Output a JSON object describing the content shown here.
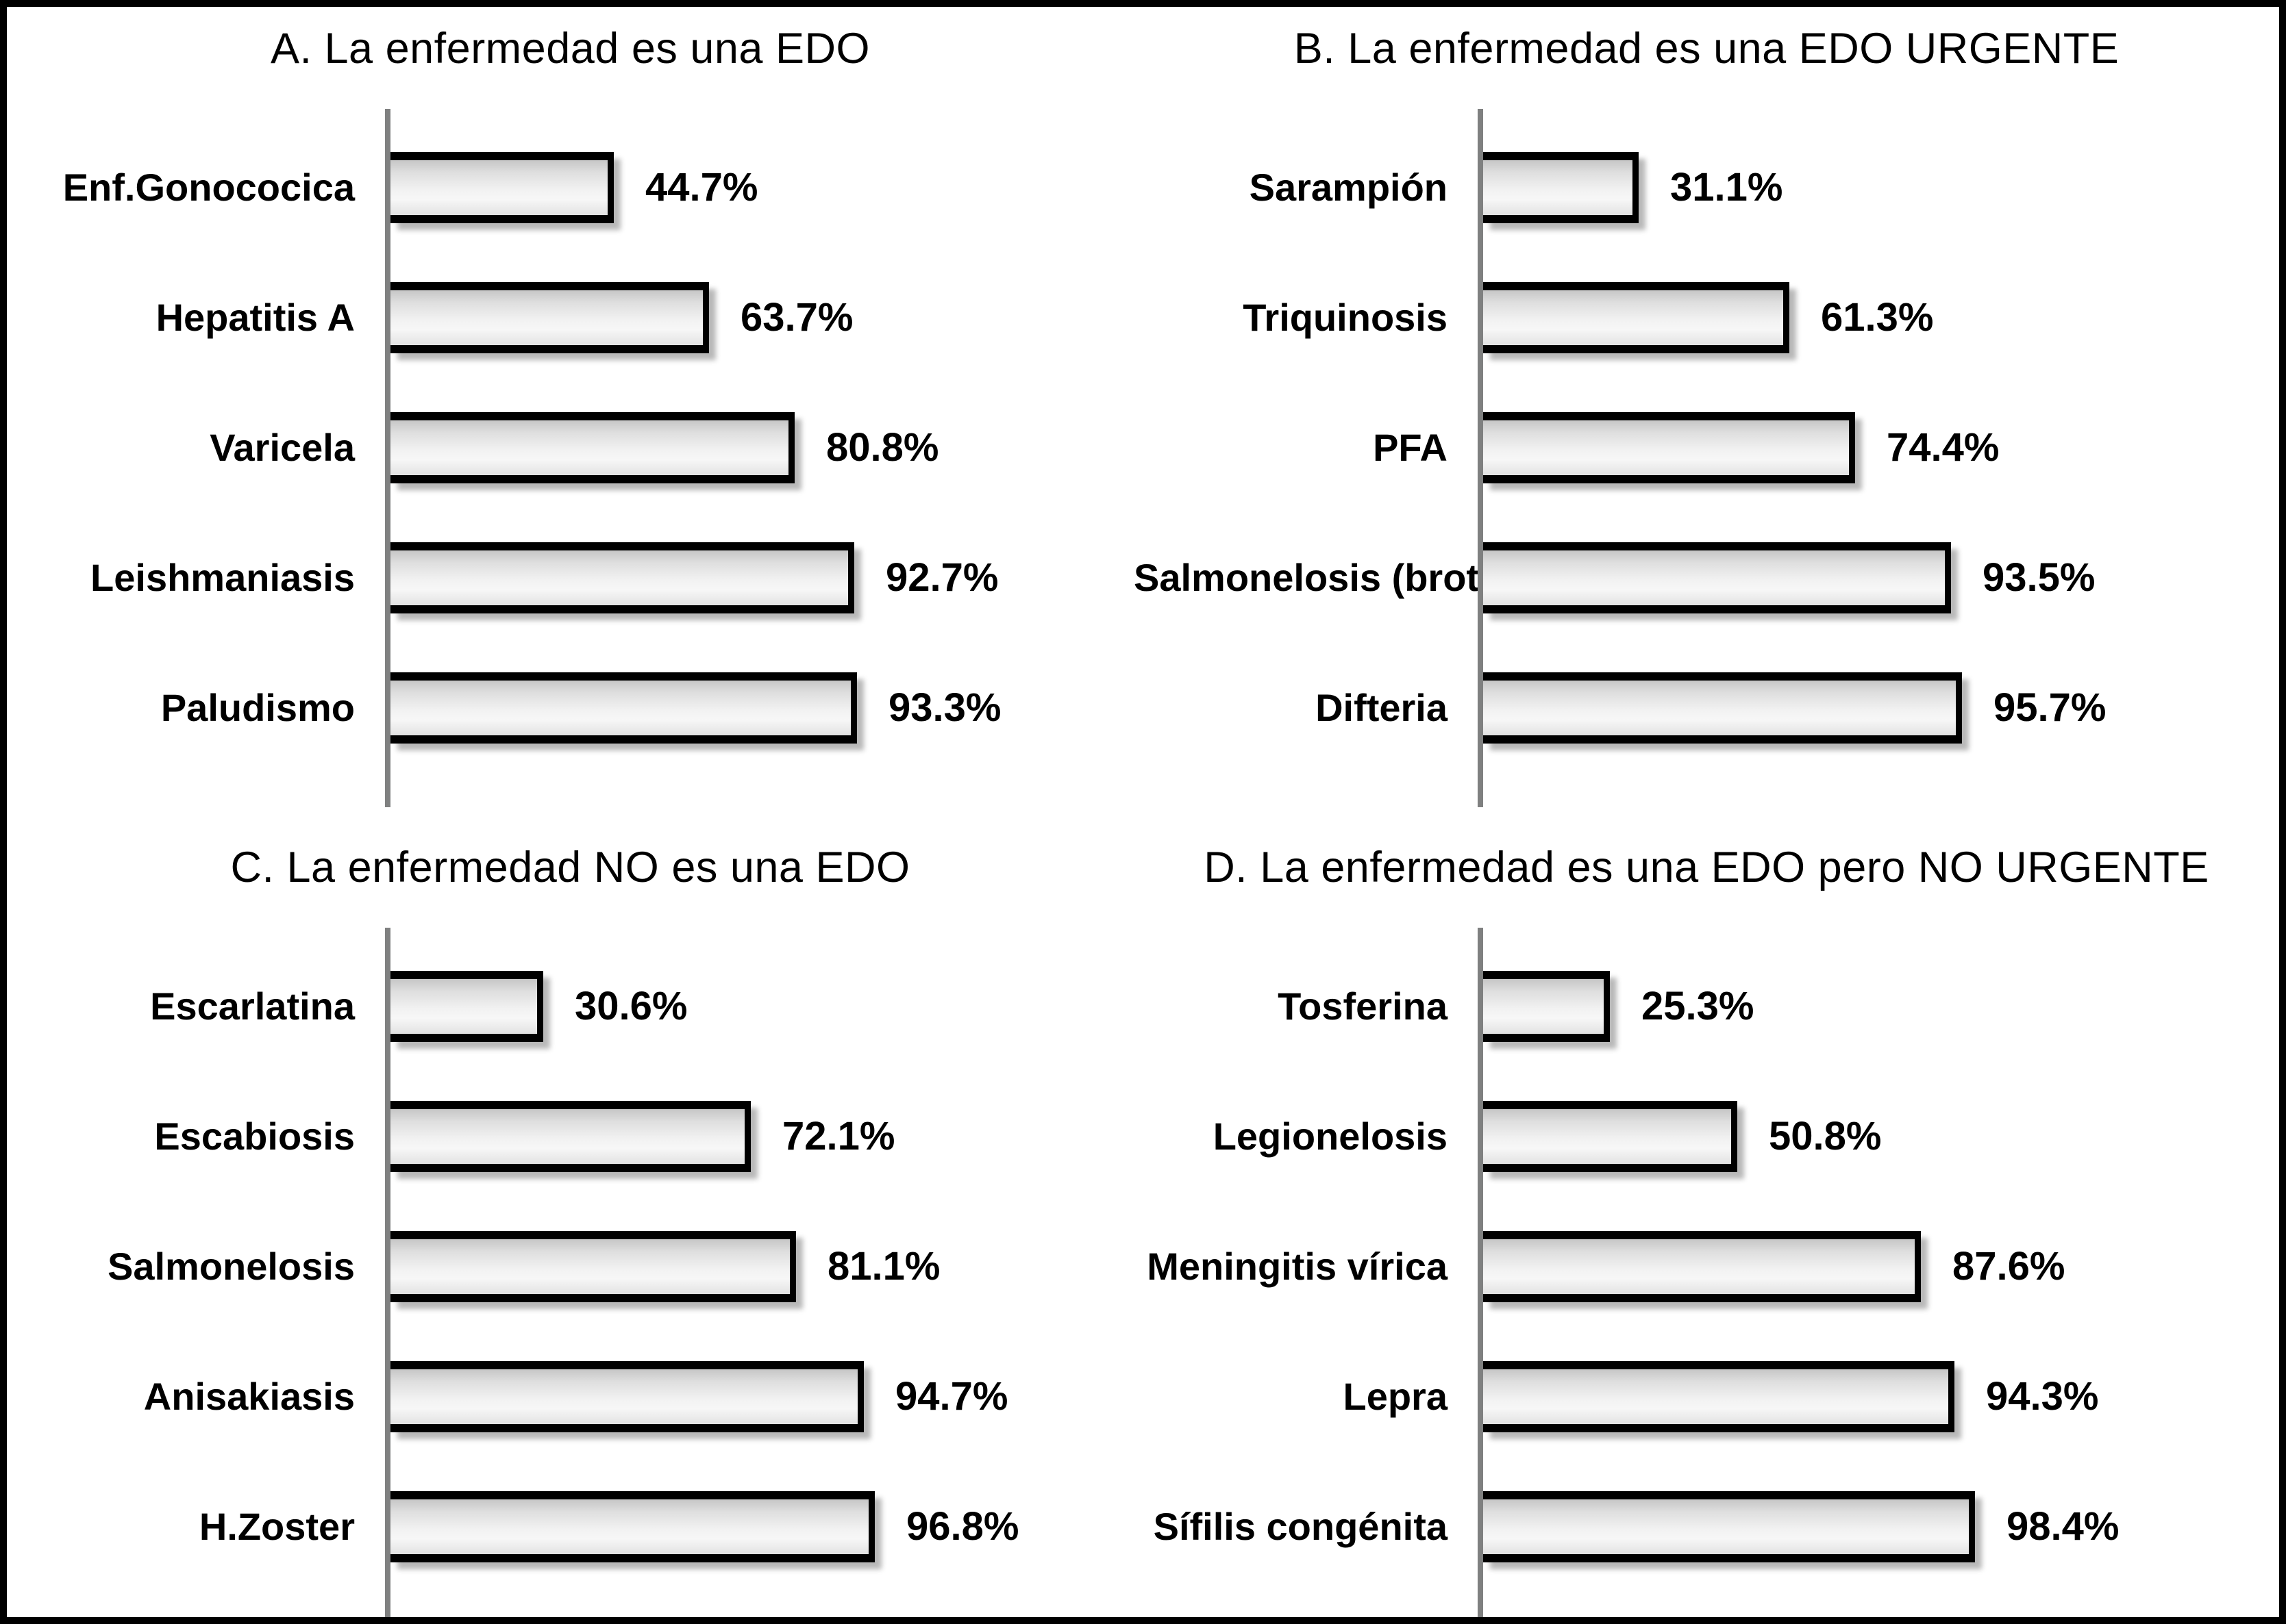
{
  "figure": {
    "background": "#ffffff",
    "outer_border_color": "#000000",
    "axis_color": "#7f8080",
    "bar_border_color": "#000000",
    "bar_fill_light": "#f2f2f2",
    "bar_fill_dark": "#c6c6c6"
  },
  "chart_data": [
    {
      "type": "bar",
      "orientation": "horizontal",
      "title": "A. La enfermedad es una EDO",
      "categories": [
        "Enf.Gonococica",
        "Hepatitis A",
        "Varicela",
        "Leishmaniasis",
        "Paludismo"
      ],
      "values": [
        44.7,
        63.7,
        80.8,
        92.7,
        93.3
      ],
      "display_values": [
        "44.7%",
        "63.7%",
        "80.8%",
        "92.7%",
        "93.3%"
      ],
      "xlabel": "",
      "ylabel": "",
      "xlim": [
        0,
        100
      ],
      "value_suffix": "%",
      "grid": false,
      "legend": false
    },
    {
      "type": "bar",
      "orientation": "horizontal",
      "title": "B. La enfermedad es una EDO URGENTE",
      "categories": [
        "Sarampión",
        "Triquinosis",
        "PFA",
        "Salmonelosis (brote)",
        "Difteria"
      ],
      "values": [
        31.1,
        61.3,
        74.4,
        93.5,
        95.7
      ],
      "display_values": [
        "31.1%",
        "61.3%",
        "74.4%",
        "93.5%",
        "95.7%"
      ],
      "xlabel": "",
      "ylabel": "",
      "xlim": [
        0,
        100
      ],
      "value_suffix": "%",
      "grid": false,
      "legend": false
    },
    {
      "type": "bar",
      "orientation": "horizontal",
      "title": "C. La enfermedad NO es una EDO",
      "categories": [
        "Escarlatina",
        "Escabiosis",
        "Salmonelosis",
        "Anisakiasis",
        "H.Zoster"
      ],
      "values": [
        30.6,
        72.1,
        81.1,
        94.7,
        96.8
      ],
      "display_values": [
        "30.6%",
        "72.1%",
        "81.1%",
        "94.7%",
        "96.8%"
      ],
      "xlabel": "",
      "ylabel": "",
      "xlim": [
        0,
        100
      ],
      "value_suffix": "%",
      "grid": false,
      "legend": false
    },
    {
      "type": "bar",
      "orientation": "horizontal",
      "title": "D. La enfermedad es una EDO pero NO URGENTE",
      "categories": [
        "Tosferina",
        "Legionelosis",
        "Meningitis vírica",
        "Lepra",
        "Sífilis congénita"
      ],
      "values": [
        25.3,
        50.8,
        87.6,
        94.3,
        98.4
      ],
      "display_values": [
        "25.3%",
        "50.8%",
        "87.6%",
        "94.3%",
        "98.4%"
      ],
      "xlabel": "",
      "ylabel": "",
      "xlim": [
        0,
        100
      ],
      "value_suffix": "%",
      "grid": false,
      "legend": false
    }
  ]
}
